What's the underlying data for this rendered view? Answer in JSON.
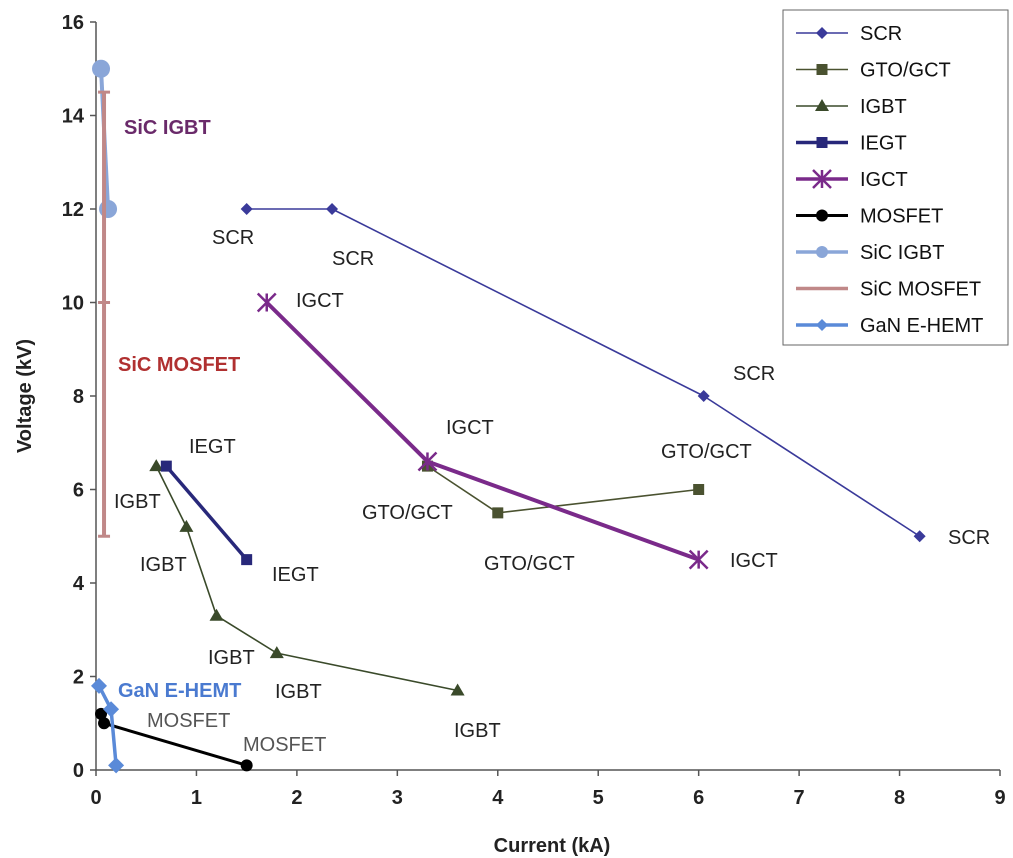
{
  "chart_data": {
    "type": "line",
    "xlabel": "Current (kA)",
    "ylabel": "Voltage (kV)",
    "xlim": [
      0,
      9
    ],
    "ylim": [
      0,
      16
    ],
    "xticks": [
      "0",
      "1",
      "2",
      "3",
      "4",
      "5",
      "6",
      "7",
      "8",
      "9"
    ],
    "yticks": [
      "0",
      "2",
      "4",
      "6",
      "8",
      "10",
      "12",
      "14",
      "16"
    ],
    "grid": false,
    "legend_position": "top-right",
    "series": [
      {
        "name": "SCR",
        "color": "#3a3a9a",
        "marker": "diamond",
        "x": [
          1.5,
          2.35,
          6.05,
          8.2
        ],
        "y": [
          12,
          12,
          8,
          5
        ],
        "labels": [
          "SCR",
          "SCR",
          "SCR",
          "SCR"
        ]
      },
      {
        "name": "GTO/GCT",
        "color": "#4a5230",
        "marker": "square",
        "x": [
          3.3,
          4.0,
          6.0
        ],
        "y": [
          6.5,
          5.5,
          6.0
        ],
        "labels": [
          "GTO/GCT",
          "GTO/GCT",
          "GTO/GCT"
        ]
      },
      {
        "name": "IGBT",
        "color": "#3a4a2a",
        "marker": "triangle",
        "x": [
          0.6,
          0.9,
          1.2,
          1.8,
          3.6
        ],
        "y": [
          6.5,
          5.2,
          3.3,
          2.5,
          1.7
        ],
        "labels": [
          "IGBT",
          "IGBT",
          "IGBT",
          "IGBT",
          "IGBT"
        ]
      },
      {
        "name": "IEGT",
        "color": "#28287a",
        "marker": "square",
        "x": [
          0.7,
          1.5
        ],
        "y": [
          6.5,
          4.5
        ],
        "labels": [
          "IEGT",
          "IEGT"
        ]
      },
      {
        "name": "IGCT",
        "color": "#7a2a8a",
        "marker": "star",
        "x": [
          1.7,
          3.3,
          6.0
        ],
        "y": [
          10,
          6.6,
          4.5
        ],
        "labels": [
          "IGCT",
          "IGCT",
          "IGCT"
        ]
      },
      {
        "name": "MOSFET",
        "color": "#000000",
        "marker": "circle",
        "x": [
          0.05,
          0.08,
          1.5
        ],
        "y": [
          1.2,
          1.0,
          0.1
        ],
        "labels": [
          "MOSFET",
          "MOSFET"
        ]
      },
      {
        "name": "SiC IGBT",
        "color": "#8aa6d8",
        "marker": "circle",
        "x": [
          0.05,
          0.12
        ],
        "y": [
          15,
          12
        ],
        "labels": [
          "SiC IGBT"
        ]
      },
      {
        "name": "SiC MOSFET",
        "color": "#c08888",
        "marker": "dash",
        "x": [
          0.08,
          0.08,
          0.08
        ],
        "y": [
          14.5,
          10,
          5
        ],
        "labels": [
          "SiC MOSFET"
        ]
      },
      {
        "name": "GaN E-HEMT",
        "color": "#5a8ad8",
        "marker": "diamond",
        "x": [
          0.03,
          0.15,
          0.2
        ],
        "y": [
          1.8,
          1.3,
          0.1
        ],
        "labels": [
          "GaN E-HEMT"
        ]
      }
    ]
  }
}
